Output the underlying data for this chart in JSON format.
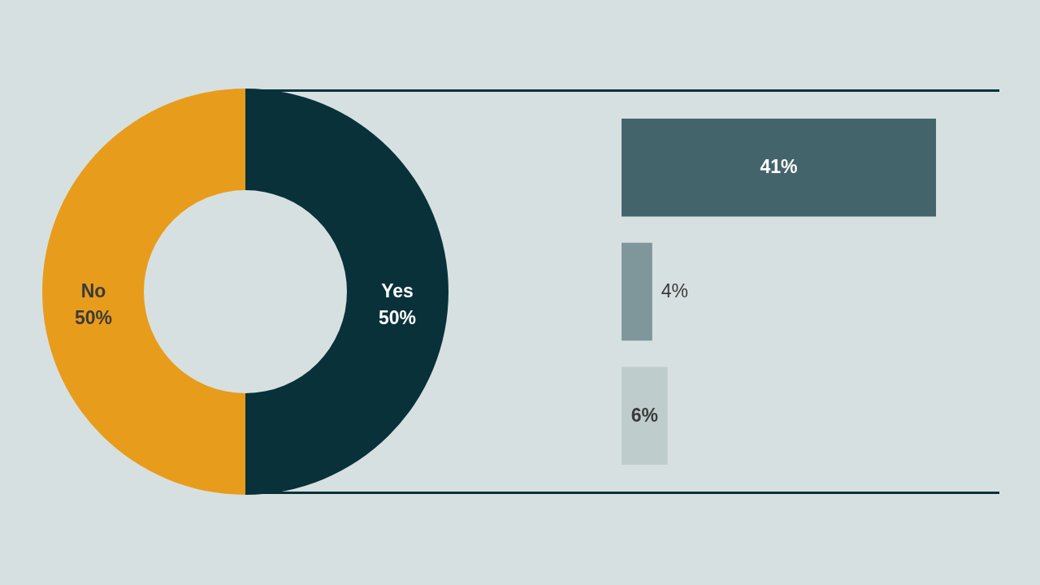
{
  "chart_data": [
    {
      "type": "donut",
      "categories": [
        "Yes",
        "No"
      ],
      "values": [
        50,
        50
      ],
      "colors": [
        "#08313a",
        "#e89c1c"
      ],
      "value_labels": [
        "50%",
        "50%"
      ]
    },
    {
      "type": "bar",
      "orientation": "horizontal",
      "categories": [
        null,
        null,
        null
      ],
      "values": [
        41,
        4,
        6
      ],
      "colors": [
        "#44646b",
        "#7f979a",
        "#bfcccc"
      ],
      "value_labels": [
        "41%",
        "4%",
        "6%"
      ]
    }
  ]
}
